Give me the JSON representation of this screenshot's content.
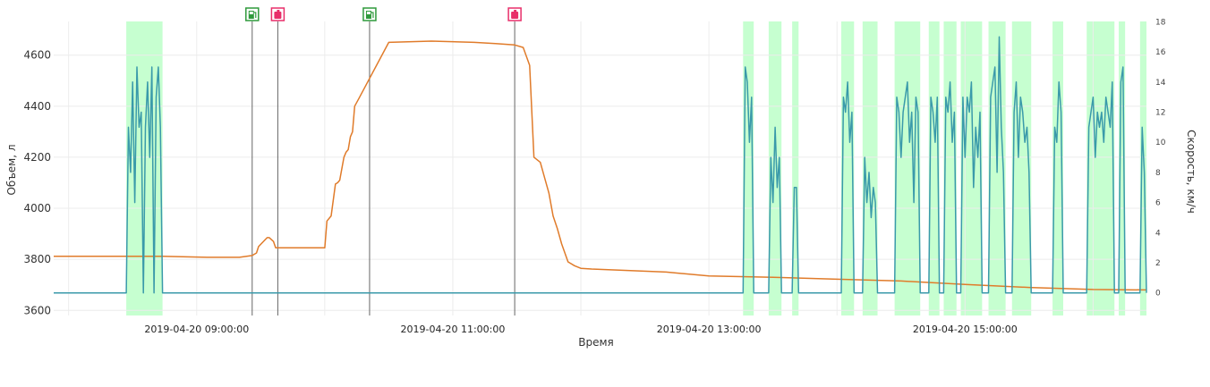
{
  "chart_data": {
    "type": "line",
    "title": "",
    "xlabel": "Время",
    "ylabel_left": "Объем, л",
    "ylabel_right": "Скорость, км/ч",
    "x_range": [
      "2019-04-20 07:53",
      "2019-04-20 16:25"
    ],
    "ylim_left": [
      3580,
      4760
    ],
    "ylim_right": [
      -1.5,
      18.5
    ],
    "x_ticks": [
      "2019-04-20 09:00:00",
      "2019-04-20 11:00:00",
      "2019-04-20 13:00:00",
      "2019-04-20 15:00:00"
    ],
    "y_ticks_left": [
      3600,
      3800,
      4000,
      4200,
      4400,
      4600
    ],
    "y_ticks_right": [
      0,
      2,
      4,
      6,
      8,
      10,
      12,
      14,
      16,
      18
    ],
    "grid": "on",
    "colors": {
      "volume": "#e07b2a",
      "speed": "#3a9aaa",
      "movement": "#c6ffd0",
      "refuel_icon": "#2f9a3c",
      "drain_icon": "#e82f6a",
      "event_line": "#666666"
    },
    "movement_intervals": [
      [
        "08:27",
        "08:44"
      ],
      [
        "13:16",
        "13:21"
      ],
      [
        "13:28",
        "13:34"
      ],
      [
        "13:39",
        "13:42"
      ],
      [
        "14:02",
        "14:08"
      ],
      [
        "14:12",
        "14:19"
      ],
      [
        "14:27",
        "14:39"
      ],
      [
        "14:43",
        "14:48"
      ],
      [
        "14:50",
        "14:56"
      ],
      [
        "14:58",
        "15:08"
      ],
      [
        "15:11",
        "15:19"
      ],
      [
        "15:22",
        "15:31"
      ],
      [
        "15:41",
        "15:46"
      ],
      [
        "15:57",
        "16:10"
      ],
      [
        "16:12",
        "16:15"
      ],
      [
        "16:22",
        "16:25"
      ]
    ],
    "events": [
      {
        "type": "refuel",
        "time": "09:26",
        "icon": "fuel-pump-icon"
      },
      {
        "type": "drain",
        "time": "09:38",
        "icon": "fuel-canister-icon"
      },
      {
        "type": "refuel",
        "time": "10:21",
        "icon": "fuel-pump-icon"
      },
      {
        "type": "drain",
        "time": "11:29",
        "icon": "fuel-canister-icon"
      }
    ],
    "series": [
      {
        "name": "Объем",
        "axis": "left",
        "x": [
          "07:53",
          "08:44",
          "09:05",
          "09:20",
          "09:26",
          "09:28",
          "09:29",
          "09:33",
          "09:34",
          "09:36",
          "09:37",
          "09:44",
          "10:00",
          "10:01",
          "10:03",
          "10:05",
          "10:06",
          "10:07",
          "10:09",
          "10:10",
          "10:11",
          "10:12",
          "10:13",
          "10:14",
          "10:16",
          "10:30",
          "10:50",
          "11:10",
          "11:20",
          "11:29",
          "11:33",
          "11:36",
          "11:38",
          "11:41",
          "11:43",
          "11:45",
          "11:47",
          "11:49",
          "11:51",
          "11:54",
          "11:57",
          "12:00",
          "12:05",
          "12:40",
          "13:00",
          "13:30",
          "14:00",
          "14:30",
          "15:00",
          "15:30",
          "16:00",
          "16:25"
        ],
        "y": [
          3812,
          3812,
          3808,
          3808,
          3815,
          3825,
          3850,
          3885,
          3885,
          3870,
          3845,
          3845,
          3845,
          3950,
          3970,
          4095,
          4100,
          4110,
          4200,
          4220,
          4230,
          4280,
          4300,
          4400,
          4430,
          4650,
          4655,
          4650,
          4645,
          4640,
          4630,
          4560,
          4200,
          4180,
          4120,
          4060,
          3970,
          3920,
          3860,
          3790,
          3775,
          3765,
          3762,
          3750,
          3735,
          3730,
          3722,
          3715,
          3702,
          3690,
          3682,
          3680
        ]
      },
      {
        "name": "Скорость",
        "axis": "right",
        "x": [
          "07:53",
          "08:27",
          "08:28",
          "08:29",
          "08:30",
          "08:31",
          "08:32",
          "08:33",
          "08:34",
          "08:35",
          "08:36",
          "08:37",
          "08:38",
          "08:39",
          "08:40",
          "08:41",
          "08:42",
          "08:43",
          "08:44",
          "13:16",
          "13:17",
          "13:18",
          "13:19",
          "13:20",
          "13:21",
          "13:28",
          "13:29",
          "13:30",
          "13:31",
          "13:32",
          "13:33",
          "13:34",
          "13:39",
          "13:40",
          "13:41",
          "13:42",
          "14:02",
          "14:03",
          "14:04",
          "14:05",
          "14:06",
          "14:07",
          "14:08",
          "14:12",
          "14:13",
          "14:14",
          "14:15",
          "14:16",
          "14:17",
          "14:18",
          "14:19",
          "14:27",
          "14:28",
          "14:29",
          "14:30",
          "14:31",
          "14:32",
          "14:33",
          "14:34",
          "14:35",
          "14:36",
          "14:37",
          "14:38",
          "14:39",
          "14:43",
          "14:44",
          "14:45",
          "14:46",
          "14:47",
          "14:48",
          "14:50",
          "14:51",
          "14:52",
          "14:53",
          "14:54",
          "14:55",
          "14:56",
          "14:58",
          "14:59",
          "15:00",
          "15:01",
          "15:02",
          "15:03",
          "15:04",
          "15:05",
          "15:06",
          "15:07",
          "15:08",
          "15:11",
          "15:12",
          "15:13",
          "15:14",
          "15:15",
          "15:16",
          "15:17",
          "15:18",
          "15:19",
          "15:22",
          "15:23",
          "15:24",
          "15:25",
          "15:26",
          "15:27",
          "15:28",
          "15:29",
          "15:30",
          "15:31",
          "15:41",
          "15:42",
          "15:43",
          "15:44",
          "15:45",
          "15:46",
          "15:57",
          "15:58",
          "15:59",
          "16:00",
          "16:01",
          "16:02",
          "16:03",
          "16:04",
          "16:05",
          "16:06",
          "16:07",
          "16:08",
          "16:09",
          "16:10",
          "16:12",
          "16:13",
          "16:14",
          "16:15",
          "16:22",
          "16:23",
          "16:24",
          "16:25"
        ],
        "y": [
          0,
          0,
          11,
          8,
          14,
          6,
          15,
          11,
          12,
          0,
          11,
          14,
          9,
          15,
          0,
          13,
          15,
          11,
          0,
          0,
          15,
          14,
          10,
          13,
          0,
          0,
          9,
          6,
          11,
          7,
          9,
          0,
          0,
          7,
          7,
          0,
          0,
          13,
          12,
          14,
          10,
          12,
          0,
          0,
          9,
          6,
          8,
          5,
          7,
          6,
          0,
          0,
          13,
          12,
          9,
          12,
          13,
          14,
          10,
          12,
          6,
          13,
          12,
          0,
          0,
          13,
          12,
          10,
          13,
          0,
          0,
          13,
          12,
          14,
          10,
          12,
          0,
          0,
          13,
          9,
          13,
          12,
          14,
          7,
          11,
          9,
          12,
          0,
          0,
          13,
          14,
          15,
          8,
          17,
          11,
          8,
          0,
          0,
          12,
          14,
          9,
          13,
          12,
          10,
          11,
          8,
          0,
          0,
          11,
          10,
          14,
          12,
          0,
          0,
          11,
          12,
          13,
          9,
          12,
          11,
          12,
          10,
          13,
          12,
          11,
          14,
          0,
          0,
          14,
          15,
          0,
          0,
          11,
          8,
          0
        ]
      }
    ]
  }
}
